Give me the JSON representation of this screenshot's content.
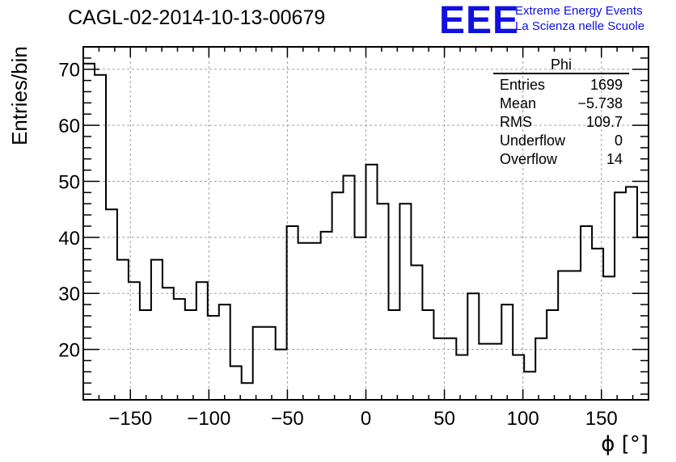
{
  "title": "CAGL-02-2014-10-13-00679",
  "logo": {
    "mark": "EEE",
    "line1": "Extreme Energy Events",
    "line2": "La Scienza nelle Scuole",
    "color": "#1010e0"
  },
  "stats_box": {
    "title": "Phi",
    "rows": [
      {
        "label": "Entries",
        "value": "1699"
      },
      {
        "label": "Mean",
        "value": "−5.738"
      },
      {
        "label": "RMS",
        "value": "109.7"
      },
      {
        "label": "Underflow",
        "value": "0"
      },
      {
        "label": "Overflow",
        "value": "14"
      }
    ]
  },
  "chart_data": {
    "type": "bar",
    "style": "step-histogram",
    "title": "CAGL-02-2014-10-13-00679",
    "xlabel": "ϕ [°]",
    "ylabel": "Entries/bin",
    "xlim": [
      -180,
      180
    ],
    "ylim": [
      11,
      74
    ],
    "bin_width": 7.2,
    "xticks": [
      -150,
      -100,
      -50,
      0,
      50,
      100,
      150
    ],
    "xtick_labels": [
      "−150",
      "−100",
      "−50",
      "0",
      "50",
      "100",
      "150"
    ],
    "yticks": [
      20,
      30,
      40,
      50,
      60,
      70
    ],
    "grid": true,
    "line_color": "#000000",
    "bin_edges_start": -180,
    "values": [
      71,
      69,
      45,
      36,
      32,
      27,
      36,
      31,
      29,
      27,
      32,
      26,
      28,
      17,
      14,
      24,
      24,
      20,
      42,
      39,
      39,
      41,
      48,
      51,
      40,
      53,
      46,
      27,
      46,
      35,
      27,
      22,
      22,
      19,
      30,
      21,
      21,
      28,
      19,
      16,
      22,
      27,
      34,
      34,
      42,
      38,
      33,
      48,
      49,
      40
    ]
  }
}
